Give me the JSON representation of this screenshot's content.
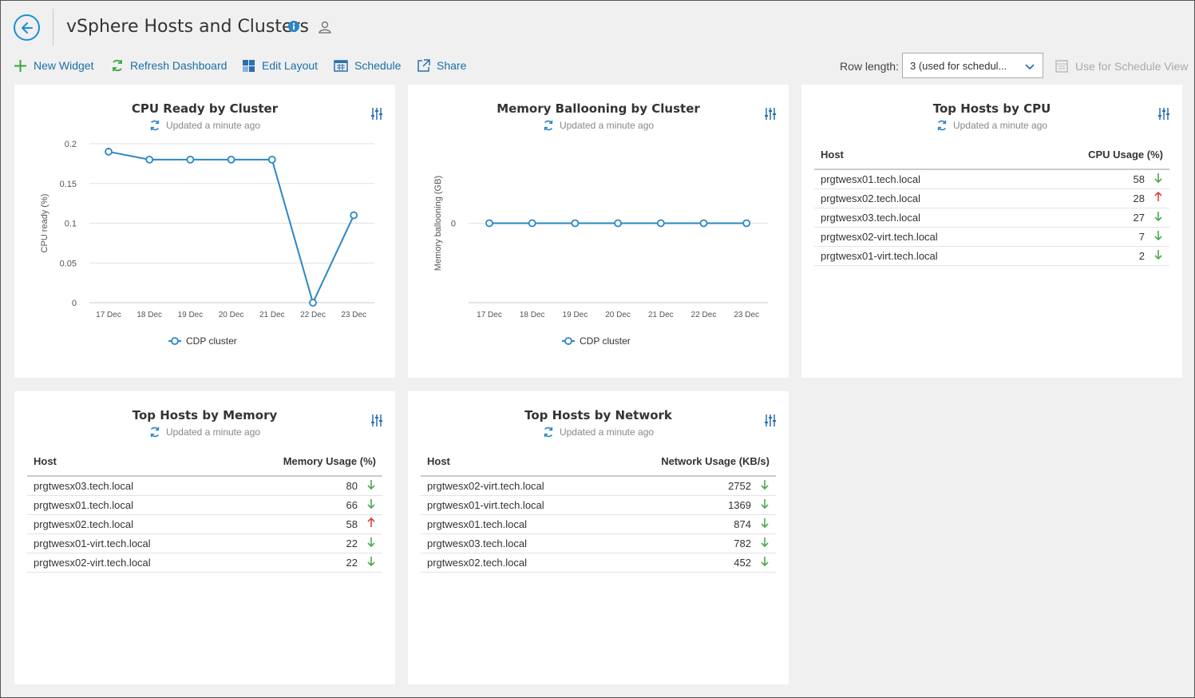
{
  "header": {
    "title": "vSphere Hosts and Clusters"
  },
  "toolbar": {
    "new_widget": "New Widget",
    "refresh_dashboard": "Refresh Dashboard",
    "edit_layout": "Edit Layout",
    "schedule": "Schedule",
    "share": "Share",
    "row_length_label": "Row length:",
    "row_length_value": "3 (used for schedul...",
    "use_for_schedule_view": "Use for Schedule View"
  },
  "colors": {
    "accent": "#1a8fd8",
    "series": "#2a87c4",
    "down_arrow": "#4ca94c",
    "up_arrow": "#e04040"
  },
  "widgets": {
    "cpu_ready": {
      "title": "CPU Ready by Cluster",
      "updated": "Updated a minute ago",
      "legend": "CDP cluster"
    },
    "mem_balloon": {
      "title": "Memory Ballooning by Cluster",
      "updated": "Updated a minute ago",
      "legend": "CDP cluster"
    },
    "top_cpu": {
      "title": "Top Hosts by CPU",
      "updated": "Updated a minute ago",
      "col_host": "Host",
      "col_value": "CPU Usage (%)",
      "rows": [
        {
          "host": "prgtwesx01.tech.local",
          "value": "58",
          "trend": "down"
        },
        {
          "host": "prgtwesx02.tech.local",
          "value": "28",
          "trend": "up"
        },
        {
          "host": "prgtwesx03.tech.local",
          "value": "27",
          "trend": "down"
        },
        {
          "host": "prgtwesx02-virt.tech.local",
          "value": "7",
          "trend": "down"
        },
        {
          "host": "prgtwesx01-virt.tech.local",
          "value": "2",
          "trend": "down"
        }
      ]
    },
    "top_mem": {
      "title": "Top Hosts by Memory",
      "updated": "Updated a minute ago",
      "col_host": "Host",
      "col_value": "Memory Usage (%)",
      "rows": [
        {
          "host": "prgtwesx03.tech.local",
          "value": "80",
          "trend": "down"
        },
        {
          "host": "prgtwesx01.tech.local",
          "value": "66",
          "trend": "down"
        },
        {
          "host": "prgtwesx02.tech.local",
          "value": "58",
          "trend": "up"
        },
        {
          "host": "prgtwesx01-virt.tech.local",
          "value": "22",
          "trend": "down"
        },
        {
          "host": "prgtwesx02-virt.tech.local",
          "value": "22",
          "trend": "down"
        }
      ]
    },
    "top_net": {
      "title": "Top Hosts by Network",
      "updated": "Updated a minute ago",
      "col_host": "Host",
      "col_value": "Network Usage (KB/s)",
      "rows": [
        {
          "host": "prgtwesx02-virt.tech.local",
          "value": "2752",
          "trend": "down"
        },
        {
          "host": "prgtwesx01-virt.tech.local",
          "value": "1369",
          "trend": "down"
        },
        {
          "host": "prgtwesx01.tech.local",
          "value": "874",
          "trend": "down"
        },
        {
          "host": "prgtwesx03.tech.local",
          "value": "782",
          "trend": "down"
        },
        {
          "host": "prgtwesx02.tech.local",
          "value": "452",
          "trend": "down"
        }
      ]
    }
  },
  "chart_data": [
    {
      "type": "line",
      "title": "CPU Ready by Cluster",
      "xlabel": "",
      "ylabel": "CPU ready (%)",
      "x": [
        "17 Dec",
        "18 Dec",
        "19 Dec",
        "20 Dec",
        "21 Dec",
        "22 Dec",
        "23 Dec"
      ],
      "yticks": [
        "0",
        "0.05",
        "0.1",
        "0.15",
        "0.2"
      ],
      "ylim": [
        0,
        0.2
      ],
      "grid": true,
      "legend_position": "bottom",
      "series": [
        {
          "name": "CDP cluster",
          "values": [
            0.19,
            0.18,
            0.18,
            0.18,
            0.18,
            0,
            0.11
          ]
        }
      ]
    },
    {
      "type": "line",
      "title": "Memory Ballooning by Cluster",
      "xlabel": "",
      "ylabel": "Memory ballooning (GB)",
      "x": [
        "17 Dec",
        "18 Dec",
        "19 Dec",
        "20 Dec",
        "21 Dec",
        "22 Dec",
        "23 Dec"
      ],
      "yticks": [
        "0"
      ],
      "ylim": [
        -1,
        1
      ],
      "grid": true,
      "legend_position": "bottom",
      "series": [
        {
          "name": "CDP cluster",
          "values": [
            0,
            0,
            0,
            0,
            0,
            0,
            0
          ]
        }
      ]
    }
  ]
}
